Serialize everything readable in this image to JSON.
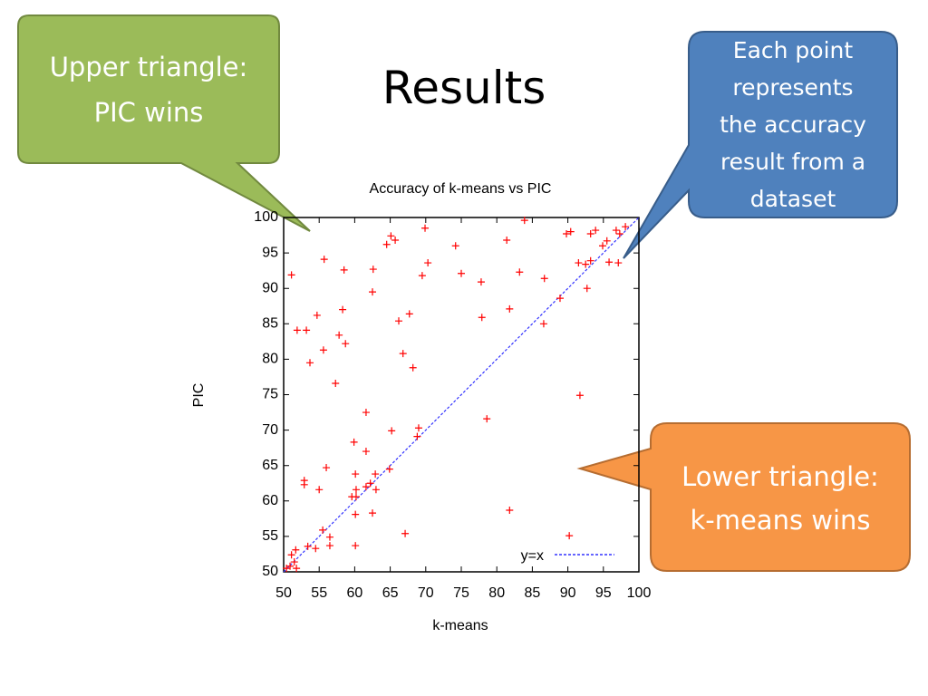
{
  "slide": {
    "title": "Results",
    "callouts": [
      {
        "lines": [
          "Upper triangle:",
          "PIC wins"
        ]
      },
      {
        "lines": [
          "Each point",
          "represents",
          "the accuracy",
          "result from a",
          "dataset"
        ]
      },
      {
        "lines": [
          "Lower triangle:",
          "k-means wins"
        ]
      }
    ]
  },
  "chart_data": {
    "type": "scatter",
    "title": "Accuracy of k-means vs PIC",
    "x_label": "k-means",
    "y_label": "PIC",
    "xlim": [
      50,
      100
    ],
    "ylim": [
      50,
      100
    ],
    "xticks": [
      50,
      55,
      60,
      65,
      70,
      75,
      80,
      85,
      90,
      95,
      100
    ],
    "yticks": [
      50,
      55,
      60,
      65,
      70,
      75,
      80,
      85,
      90,
      95,
      100
    ],
    "color": "#ff0000",
    "line_label": "y=x",
    "line_color": "#3333ff",
    "x": [
      51.1,
      51.9,
      53.2,
      54.7,
      53.7,
      55.7,
      55.6,
      58.5,
      58.3,
      57.8,
      58.7,
      57.3,
      62.6,
      62.5,
      65.1,
      65.7,
      64.5,
      69.9,
      70.3,
      69.5,
      66.2,
      67.7,
      66.8,
      68.2,
      74.2,
      75.0,
      77.8,
      77.9,
      81.4,
      81.8,
      83.2,
      83.9,
      86.7,
      86.6,
      88.9,
      89.8,
      90.4,
      91.5,
      92.7,
      92.5,
      93.2,
      93.2,
      93.9,
      94.9,
      95.5,
      95.8,
      96.8,
      97.3,
      98.1,
      97.1,
      91.7,
      90.2,
      81.8,
      78.6,
      69.0,
      68.8,
      65.2,
      61.6,
      59.9,
      61.6,
      56.0,
      52.9,
      52.9,
      55.0,
      60.1,
      60.2,
      60.2,
      59.6,
      60.1,
      62.5,
      62.9,
      63.0,
      62.2,
      61.6,
      64.9,
      60.1,
      67.1,
      56.5,
      56.5,
      54.5,
      55.5,
      53.4,
      51.7,
      51.1,
      51.5,
      50.9,
      50.4,
      51.8
    ],
    "values": [
      91.9,
      84.1,
      84.1,
      86.2,
      79.5,
      94.1,
      81.3,
      92.6,
      87.0,
      83.4,
      82.2,
      76.6,
      92.7,
      89.5,
      97.4,
      96.8,
      96.2,
      98.5,
      93.6,
      91.8,
      85.4,
      86.4,
      80.8,
      78.8,
      96.0,
      92.1,
      90.9,
      85.9,
      96.8,
      87.1,
      92.3,
      99.6,
      91.4,
      85.0,
      88.6,
      97.7,
      98.0,
      93.6,
      90.0,
      93.4,
      93.9,
      97.7,
      98.2,
      96.0,
      96.7,
      93.7,
      98.2,
      97.7,
      98.7,
      93.6,
      74.9,
      55.1,
      58.7,
      71.6,
      70.3,
      69.1,
      69.9,
      72.5,
      68.3,
      67.0,
      64.7,
      62.9,
      62.3,
      61.6,
      63.8,
      61.6,
      60.6,
      60.6,
      58.1,
      58.3,
      63.8,
      61.6,
      62.5,
      62.0,
      64.5,
      53.7,
      55.4,
      54.9,
      53.7,
      53.3,
      55.9,
      53.6,
      53.1,
      52.4,
      51.4,
      50.8,
      50.5,
      50.5
    ]
  }
}
